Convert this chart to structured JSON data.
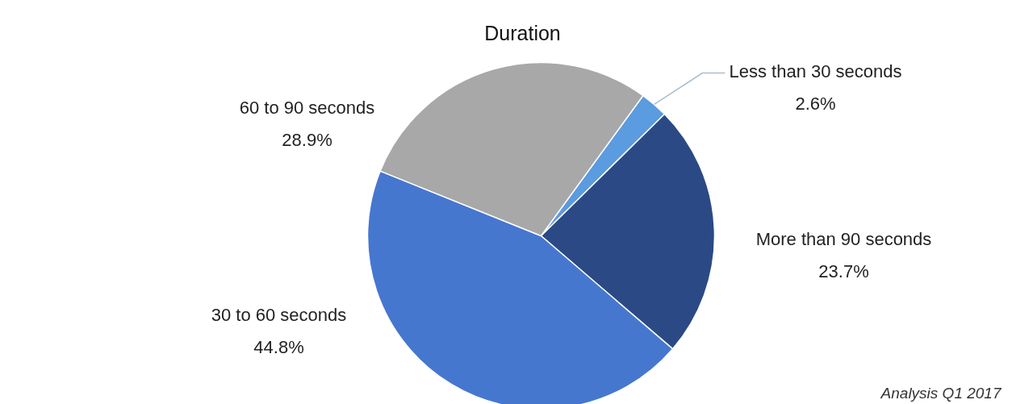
{
  "chart_data": {
    "type": "pie",
    "title": "Duration",
    "categories": [
      "Less than 30 seconds",
      "More than 90 seconds",
      "30 to 60 seconds",
      "60 to 90 seconds"
    ],
    "values": [
      2.6,
      23.7,
      44.8,
      28.9
    ],
    "colors": [
      "#5b9be0",
      "#2b4a85",
      "#4677cf",
      "#a8a8a8"
    ],
    "value_labels": [
      "2.6%",
      "23.7%",
      "44.8%",
      "28.9%"
    ],
    "annotations": [
      "Analysis Q1 2017"
    ]
  }
}
